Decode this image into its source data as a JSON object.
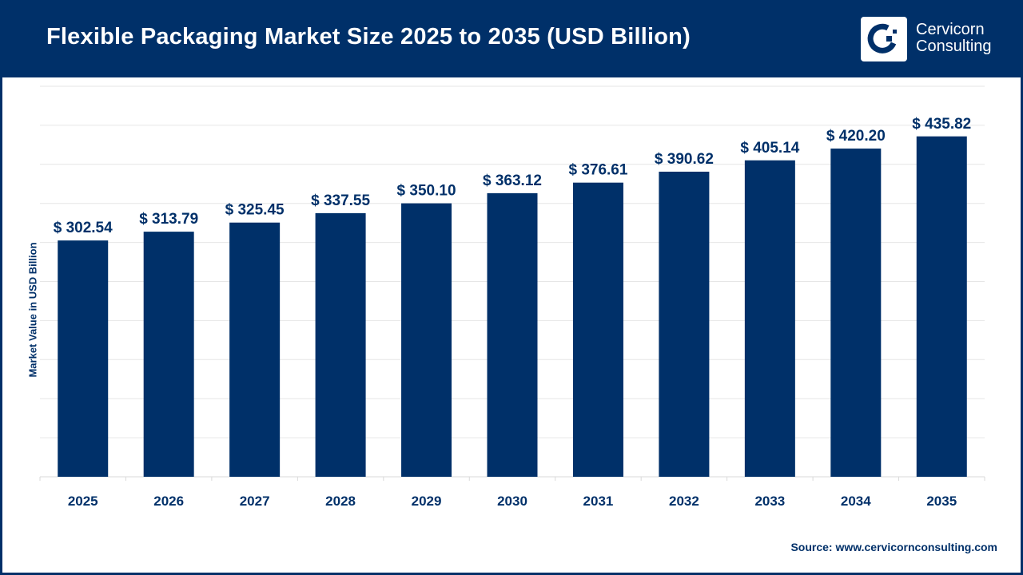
{
  "header": {
    "title": "Flexible Packaging Market Size 2025 to 2035 (USD Billion)",
    "brand_line1": "Cervicorn",
    "brand_line2": "Consulting"
  },
  "source": "Source: www.cervicornconsulting.com",
  "colors": {
    "bar": "#003069",
    "header": "#003069",
    "grid": "#e6e6e6"
  },
  "chart_data": {
    "type": "bar",
    "title": "Flexible Packaging Market Size 2025 to 2035 (USD Billion)",
    "xlabel": "",
    "ylabel": "Market Value in USD Billion",
    "categories": [
      "2025",
      "2026",
      "2027",
      "2028",
      "2029",
      "2030",
      "2031",
      "2032",
      "2033",
      "2034",
      "2035"
    ],
    "values": [
      302.54,
      313.79,
      325.45,
      337.55,
      350.1,
      363.12,
      376.61,
      390.62,
      405.14,
      420.2,
      435.82
    ],
    "data_labels": [
      "$ 302.54",
      "$ 313.79",
      "$ 325.45",
      "$ 337.55",
      "$ 350.10",
      "$ 363.12",
      "$ 376.61",
      "$ 390.62",
      "$ 405.14",
      "$ 420.20",
      "$ 435.82"
    ],
    "ylim": [
      0,
      500
    ],
    "y_grid_step": 50,
    "grid": true,
    "y_tick_labels_shown": false,
    "legend": "none"
  }
}
